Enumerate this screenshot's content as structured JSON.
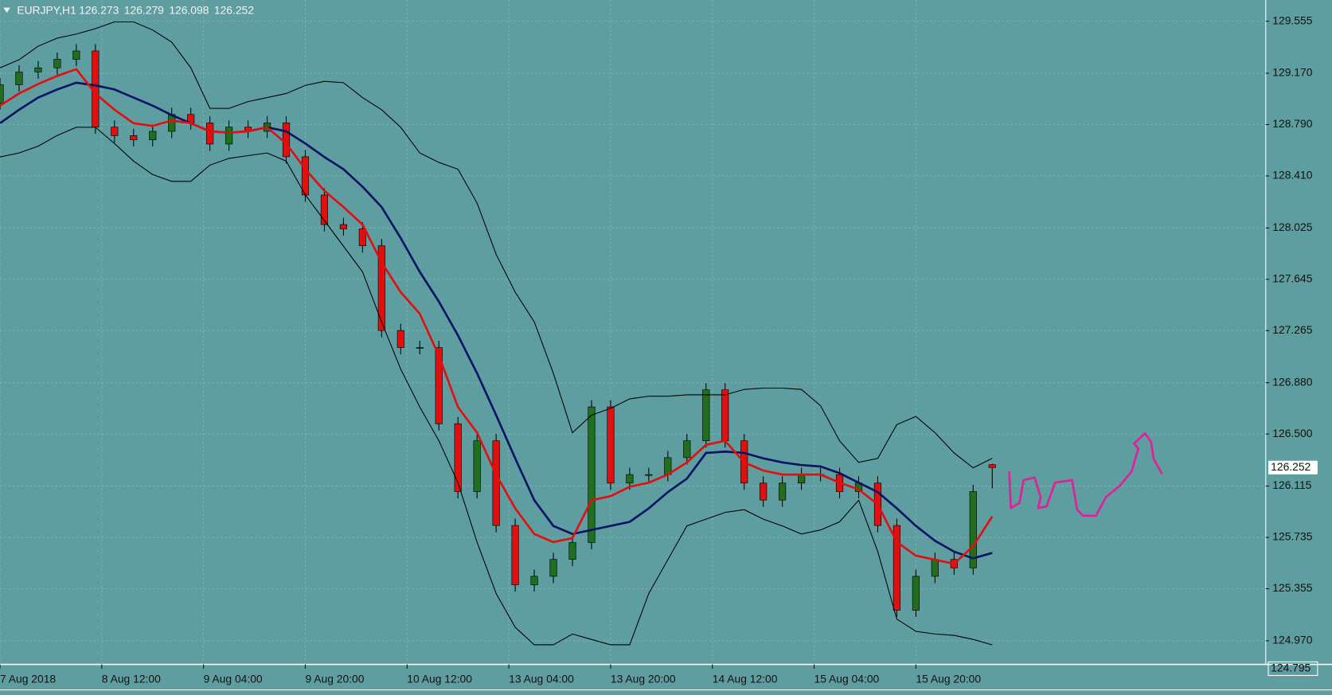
{
  "chart_data": {
    "type": "candlestick",
    "title": "EURJPY,H1",
    "x": [
      0,
      3,
      6,
      9,
      12,
      15,
      18,
      21,
      24,
      27,
      30,
      33,
      36,
      39,
      42,
      45,
      48,
      51,
      54,
      57,
      60,
      63,
      66,
      69,
      72,
      75,
      78,
      81,
      84,
      87,
      90,
      93,
      96,
      99,
      102,
      105,
      108,
      111,
      114,
      117,
      120,
      123,
      126,
      129,
      132,
      135,
      138,
      141,
      144,
      147,
      150,
      153,
      156
    ],
    "candles": {
      "open": [
        128.95,
        129.085,
        129.179,
        129.21,
        129.273,
        129.335,
        128.771,
        128.708,
        128.677,
        128.74,
        128.865,
        128.802,
        128.646,
        128.771,
        128.74,
        128.802,
        128.552,
        128.269,
        128.05,
        128.018,
        127.893,
        127.266,
        127.14,
        127.14,
        126.576,
        126.074,
        126.45,
        125.823,
        125.384,
        125.447,
        125.572,
        125.697,
        126.701,
        126.137,
        126.2,
        126.2,
        126.325,
        126.45,
        126.827,
        126.45,
        126.137,
        126.011,
        126.137,
        126.2,
        126.2,
        126.074,
        126.137,
        125.823,
        125.196,
        125.447,
        125.572,
        125.509,
        126.273
      ],
      "high": [
        129.135,
        129.229,
        129.26,
        129.323,
        129.385,
        129.385,
        128.821,
        128.758,
        128.79,
        128.915,
        128.915,
        128.852,
        128.821,
        128.821,
        128.852,
        128.852,
        128.602,
        128.319,
        128.1,
        128.068,
        127.943,
        127.316,
        127.19,
        127.19,
        126.626,
        126.5,
        126.5,
        125.873,
        125.497,
        125.622,
        125.747,
        126.751,
        126.751,
        126.25,
        126.25,
        126.375,
        126.5,
        126.877,
        126.877,
        126.5,
        126.187,
        126.187,
        126.25,
        126.25,
        126.25,
        126.187,
        126.187,
        125.873,
        125.497,
        125.622,
        125.622,
        126.124,
        126.279
      ],
      "low": [
        128.9,
        129.035,
        129.129,
        129.16,
        129.223,
        128.721,
        128.658,
        128.627,
        128.627,
        128.69,
        128.752,
        128.596,
        128.596,
        128.69,
        128.69,
        128.502,
        128.219,
        128.0,
        127.968,
        127.843,
        127.216,
        127.09,
        127.09,
        126.526,
        126.024,
        126.024,
        125.773,
        125.334,
        125.334,
        125.397,
        125.522,
        125.647,
        126.087,
        126.087,
        126.15,
        126.15,
        126.275,
        126.4,
        126.4,
        126.087,
        125.961,
        125.961,
        126.087,
        126.15,
        126.024,
        126.024,
        125.773,
        125.146,
        125.146,
        125.397,
        125.459,
        125.459,
        126.098
      ],
      "close": [
        129.085,
        129.179,
        129.21,
        129.273,
        129.335,
        128.771,
        128.708,
        128.677,
        128.74,
        128.865,
        128.802,
        128.646,
        128.771,
        128.74,
        128.802,
        128.552,
        128.269,
        128.05,
        128.018,
        127.893,
        127.266,
        127.14,
        127.14,
        126.576,
        126.074,
        126.45,
        125.823,
        125.384,
        125.447,
        125.572,
        125.697,
        126.701,
        126.137,
        126.2,
        126.2,
        126.325,
        126.45,
        126.827,
        126.45,
        126.137,
        126.011,
        126.137,
        126.2,
        126.2,
        126.074,
        126.137,
        125.823,
        125.196,
        125.447,
        125.572,
        125.509,
        126.074,
        126.252
      ],
      "up_color": "#1f6f1f",
      "down_color": "#e01010"
    },
    "lines": [
      {
        "color": "#000000",
        "values": [
          129.21,
          129.27,
          129.37,
          129.43,
          129.46,
          129.5,
          129.55,
          129.55,
          129.49,
          129.4,
          129.21,
          128.91,
          128.91,
          128.96,
          128.99,
          129.02,
          129.08,
          129.11,
          129.1,
          128.99,
          128.9,
          128.77,
          128.58,
          128.51,
          128.46,
          128.21,
          127.83,
          127.55,
          127.33,
          126.95,
          126.51,
          126.64,
          126.69,
          126.76,
          126.78,
          126.78,
          126.79,
          126.79,
          126.79,
          126.83,
          126.84,
          126.84,
          126.83,
          126.71,
          126.45,
          126.29,
          126.32,
          126.57,
          126.63,
          126.51,
          126.36,
          126.25,
          126.32
        ]
      },
      {
        "color": "#000000",
        "values": [
          128.55,
          128.58,
          128.63,
          128.71,
          128.77,
          128.77,
          128.65,
          128.52,
          128.42,
          128.37,
          128.37,
          128.49,
          128.54,
          128.56,
          128.58,
          128.52,
          128.27,
          128.08,
          127.89,
          127.7,
          127.33,
          126.98,
          126.7,
          126.45,
          126.14,
          125.7,
          125.32,
          125.07,
          124.94,
          124.94,
          125.02,
          124.98,
          124.94,
          124.94,
          125.32,
          125.57,
          125.82,
          125.87,
          125.92,
          125.94,
          125.87,
          125.82,
          125.76,
          125.79,
          125.85,
          126.01,
          125.63,
          125.13,
          125.04,
          125.02,
          125.01,
          124.98,
          124.94
        ]
      },
      {
        "color": "#0a1464",
        "values": [
          128.8,
          128.9,
          128.99,
          129.05,
          129.1,
          129.08,
          129.05,
          128.99,
          128.93,
          128.86,
          128.8,
          128.74,
          128.73,
          128.74,
          128.77,
          128.74,
          128.65,
          128.55,
          128.46,
          128.33,
          128.18,
          127.95,
          127.7,
          127.48,
          127.23,
          126.95,
          126.64,
          126.32,
          126.01,
          125.82,
          125.76,
          125.79,
          125.82,
          125.85,
          125.95,
          126.07,
          126.17,
          126.36,
          126.37,
          126.36,
          126.32,
          126.29,
          126.27,
          126.26,
          126.21,
          126.14,
          126.07,
          125.95,
          125.82,
          125.71,
          125.63,
          125.58,
          125.62
        ]
      },
      {
        "color": "#e01010",
        "values": [
          128.93,
          129.02,
          129.09,
          129.15,
          129.2,
          129.02,
          128.9,
          128.8,
          128.78,
          128.82,
          128.8,
          128.74,
          128.73,
          128.74,
          128.77,
          128.65,
          128.46,
          128.3,
          128.18,
          128.05,
          127.77,
          127.55,
          127.39,
          127.08,
          126.7,
          126.51,
          126.2,
          125.95,
          125.76,
          125.7,
          125.73,
          126.01,
          126.04,
          126.11,
          126.14,
          126.2,
          126.29,
          126.42,
          126.45,
          126.29,
          126.23,
          126.2,
          126.2,
          126.2,
          126.14,
          126.09,
          125.98,
          125.7,
          125.6,
          125.57,
          125.54,
          125.67,
          125.89
        ]
      }
    ],
    "current_price": 126.252,
    "xlim": [
      0,
      199
    ],
    "xticks": [
      {
        "value": 0,
        "label": "7 Aug 2018"
      },
      {
        "value": 16,
        "label": "8 Aug 12:00"
      },
      {
        "value": 32,
        "label": "9 Aug 04:00"
      },
      {
        "value": 48,
        "label": "9 Aug 20:00"
      },
      {
        "value": 64,
        "label": "10 Aug 12:00"
      },
      {
        "value": 80,
        "label": "13 Aug 04:00"
      },
      {
        "value": 96,
        "label": "13 Aug 20:00"
      },
      {
        "value": 112,
        "label": "14 Aug 12:00"
      },
      {
        "value": 128,
        "label": "15 Aug 04:00"
      },
      {
        "value": 144,
        "label": "15 Aug 20:00"
      }
    ],
    "ylim": [
      124.795,
      129.712
    ],
    "yticks": [
      129.555,
      {
        "value": 129.17,
        "label": "129.170"
      },
      {
        "value": 128.79,
        "label": "128.790"
      },
      {
        "value": 128.41,
        "label": "128.410"
      },
      128.025,
      127.645,
      127.265,
      {
        "value": 126.88,
        "label": "126.880"
      },
      {
        "value": 126.5,
        "label": "126.500"
      },
      126.115,
      125.735,
      125.355,
      {
        "value": 124.97,
        "label": "124.970"
      }
    ],
    "grid": true
  }
}
